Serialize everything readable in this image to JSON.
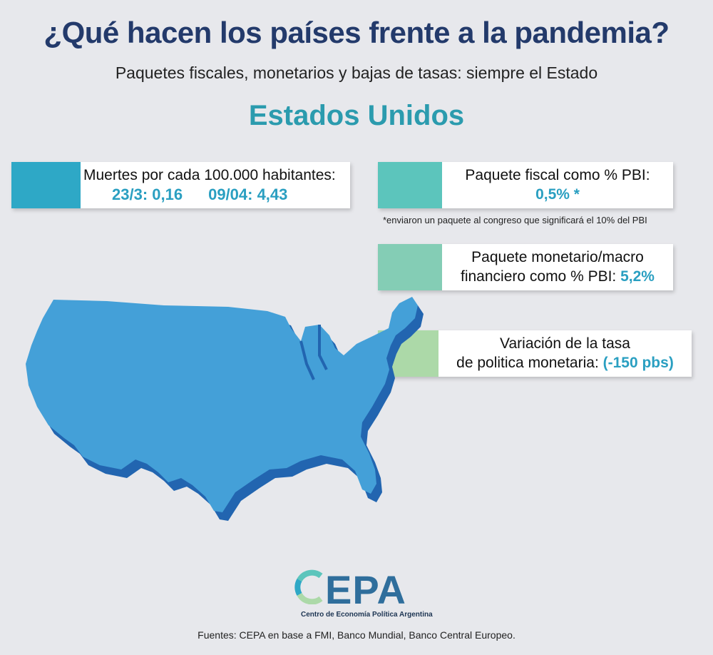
{
  "header": {
    "title": "¿Qué hacen los países frente a la pandemia?",
    "subtitle": "Paquetes fiscales, monetarios y bajas de tasas: siempre el Estado",
    "country": "Estados Unidos"
  },
  "cards": {
    "deaths": {
      "label": "Muertes por cada 100.000 habitantes:",
      "value_1": "23/3: 0,16",
      "value_2": "09/04: 4,43",
      "color": "#2ea8c6"
    },
    "fiscal": {
      "label": "Paquete fiscal como % PBI:",
      "value": "0,5% *",
      "footnote": "*enviaron un paquete al congreso que significará el 10% del PBI",
      "color": "#5cc5bc"
    },
    "monetary": {
      "label_line1": "Paquete monetario/macro",
      "label_line2": "financiero como % PBI: ",
      "value": "5,2%",
      "color": "#84cdb5"
    },
    "rate": {
      "label_line1": "Variación de la tasa",
      "label_line2": "de politica monetaria: ",
      "value": "(-150 pbs)",
      "color": "#acd9a8"
    }
  },
  "map": {
    "region": "Estados Unidos",
    "fill": "#44a0d8",
    "shadow": "#2265b0"
  },
  "logo": {
    "text": "EPA",
    "subtitle": "Centro de Economía Política Argentina"
  },
  "footer": {
    "sources": "Fuentes: CEPA en base a FMI, Banco Mundial, Banco Central Europeo."
  }
}
